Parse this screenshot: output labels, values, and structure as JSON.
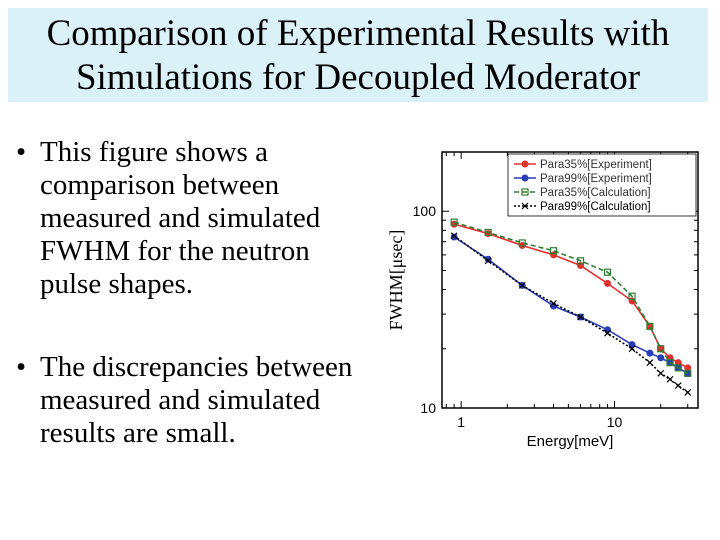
{
  "slide": {
    "title_line1": "Comparison of Experimental Results with",
    "title_line2": "Simulations for Decoupled Moderator",
    "bullets": [
      "This figure shows a comparison between measured and simulated FWHM for the neutron pulse shapes.",
      "The discrepancies between measured and simulated results are small."
    ]
  },
  "chart_data": {
    "type": "line",
    "xlabel": "Energy[meV]",
    "ylabel": "FWHM[μsec]",
    "x_scale": "log",
    "y_scale": "log",
    "xlim": [
      0.75,
      35
    ],
    "ylim": [
      10,
      200
    ],
    "x_ticks": [
      1,
      10
    ],
    "y_ticks": [
      10,
      100
    ],
    "grid": false,
    "legend_position": "top-right",
    "series": [
      {
        "name": "Para35%[Experiment]",
        "color": "#e0322e",
        "style": "solid",
        "marker": "circle",
        "x": [
          0.9,
          1.5,
          2.5,
          4.0,
          6.0,
          9.0,
          13.0,
          17.0,
          20.0,
          23.0,
          26.0,
          30.0
        ],
        "y": [
          86,
          77,
          67,
          60,
          53,
          43,
          35,
          26,
          20,
          18,
          17,
          16
        ]
      },
      {
        "name": "Para99%[Experiment]",
        "color": "#2a3db8",
        "style": "solid",
        "marker": "circle",
        "x": [
          0.9,
          1.5,
          2.5,
          4.0,
          6.0,
          9.0,
          13.0,
          17.0,
          20.0,
          23.0,
          26.0,
          30.0
        ],
        "y": [
          74,
          57,
          42,
          33,
          29,
          25,
          21,
          19,
          18,
          17,
          16,
          15
        ]
      },
      {
        "name": "Para35%[Calculation]",
        "color": "#2e7d32",
        "style": "dashed",
        "marker": "square",
        "x": [
          0.9,
          1.5,
          2.5,
          4.0,
          6.0,
          9.0,
          13.0,
          17.0,
          20.0,
          23.0,
          26.0,
          30.0
        ],
        "y": [
          88,
          78,
          69,
          63,
          56,
          49,
          37,
          26,
          20,
          17,
          16,
          15
        ]
      },
      {
        "name": "Para99%[Calculation]",
        "color": "#000000",
        "style": "dotted",
        "marker": "cross",
        "x": [
          0.9,
          1.5,
          2.5,
          4.0,
          6.0,
          9.0,
          13.0,
          17.0,
          20.0,
          23.0,
          26.0,
          30.0
        ],
        "y": [
          75,
          56,
          42,
          34,
          29,
          24,
          20,
          17,
          15,
          14,
          13,
          12
        ]
      }
    ]
  }
}
